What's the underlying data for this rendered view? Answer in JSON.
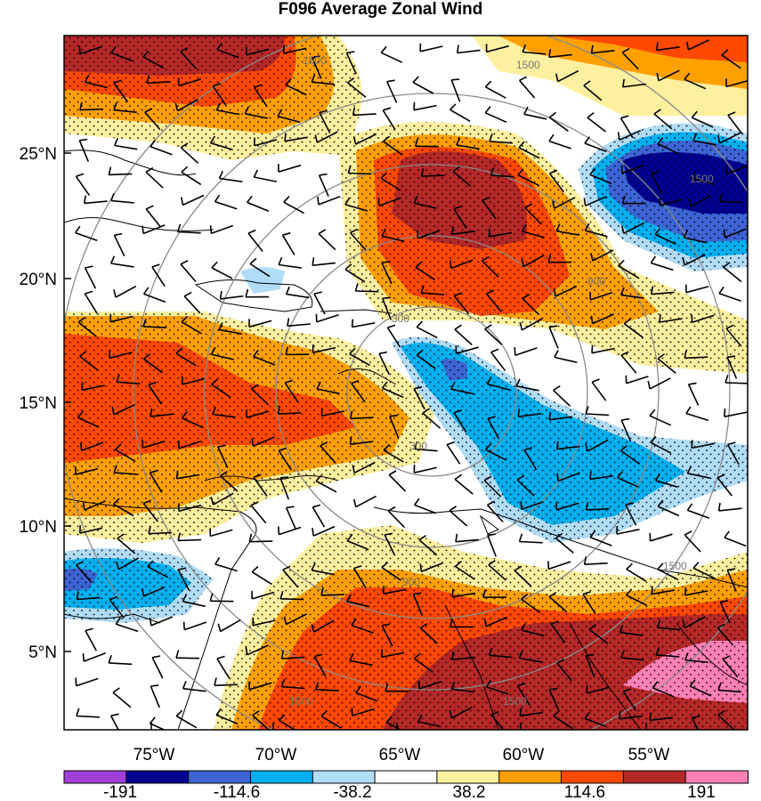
{
  "title": "F096 Average Zonal Wind",
  "map": {
    "lat_ticks": [
      "25°N",
      "20°N",
      "15°N",
      "10°N",
      "5°N"
    ],
    "lon_ticks": [
      "75°W",
      "70°W",
      "65°W",
      "60°W",
      "55°W"
    ],
    "range_rings": [
      "300",
      "900",
      "1500"
    ]
  },
  "colorbar": {
    "labels": [
      "-191",
      "-114.6",
      "-38.2",
      "38.2",
      "114.6",
      "191"
    ],
    "colors": [
      "#a040d8",
      "#000090",
      "#3c64d4",
      "#00b0f0",
      "#b0dcf8",
      "#ffffff",
      "#fff0a0",
      "#ffa000",
      "#ff4800",
      "#b42828",
      "#ff80b4"
    ]
  }
}
